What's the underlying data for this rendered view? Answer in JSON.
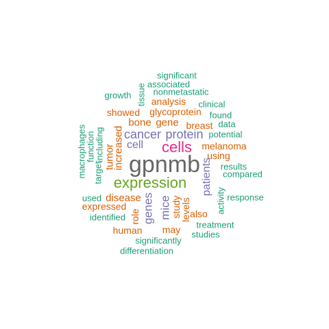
{
  "colors": {
    "green": "#1B9E77",
    "orange": "#D95F02",
    "purple": "#7570B3",
    "magenta": "#E7298A",
    "lime": "#66A61E",
    "gray": "#666666"
  },
  "words": [
    {
      "text": "gpnmb",
      "color": "gray"
    },
    {
      "text": "expression",
      "color": "lime"
    },
    {
      "text": "cells",
      "color": "magenta"
    },
    {
      "text": "cancer",
      "color": "purple"
    },
    {
      "text": "protein",
      "color": "purple"
    },
    {
      "text": "cell",
      "color": "purple"
    },
    {
      "text": "genes",
      "color": "purple"
    },
    {
      "text": "patients",
      "color": "purple"
    },
    {
      "text": "mice",
      "color": "purple"
    },
    {
      "text": "disease",
      "color": "orange"
    },
    {
      "text": "increased",
      "color": "orange"
    },
    {
      "text": "tumor",
      "color": "orange"
    },
    {
      "text": "melanoma",
      "color": "orange"
    },
    {
      "text": "bone",
      "color": "orange"
    },
    {
      "text": "gene",
      "color": "orange"
    },
    {
      "text": "glycoprotein",
      "color": "orange"
    },
    {
      "text": "analysis",
      "color": "orange"
    },
    {
      "text": "showed",
      "color": "orange"
    },
    {
      "text": "breast",
      "color": "orange"
    },
    {
      "text": "using",
      "color": "orange"
    },
    {
      "text": "expressed",
      "color": "orange"
    },
    {
      "text": "role",
      "color": "orange"
    },
    {
      "text": "study",
      "color": "orange"
    },
    {
      "text": "levels",
      "color": "orange"
    },
    {
      "text": "also",
      "color": "orange"
    },
    {
      "text": "may",
      "color": "orange"
    },
    {
      "text": "human",
      "color": "orange"
    },
    {
      "text": "significant",
      "color": "green"
    },
    {
      "text": "associated",
      "color": "green"
    },
    {
      "text": "nonmetastatic",
      "color": "green"
    },
    {
      "text": "growth",
      "color": "green"
    },
    {
      "text": "tissue",
      "color": "green"
    },
    {
      "text": "clinical",
      "color": "green"
    },
    {
      "text": "found",
      "color": "green"
    },
    {
      "text": "data",
      "color": "green"
    },
    {
      "text": "potential",
      "color": "green"
    },
    {
      "text": "macrophages",
      "color": "green"
    },
    {
      "text": "function",
      "color": "green"
    },
    {
      "text": "including",
      "color": "green"
    },
    {
      "text": "target",
      "color": "green"
    },
    {
      "text": "results",
      "color": "green"
    },
    {
      "text": "compared",
      "color": "green"
    },
    {
      "text": "used",
      "color": "green"
    },
    {
      "text": "identified",
      "color": "green"
    },
    {
      "text": "activity",
      "color": "green"
    },
    {
      "text": "response",
      "color": "green"
    },
    {
      "text": "treatment",
      "color": "green"
    },
    {
      "text": "studies",
      "color": "green"
    },
    {
      "text": "significantly",
      "color": "green"
    },
    {
      "text": "differentiation",
      "color": "green"
    }
  ]
}
